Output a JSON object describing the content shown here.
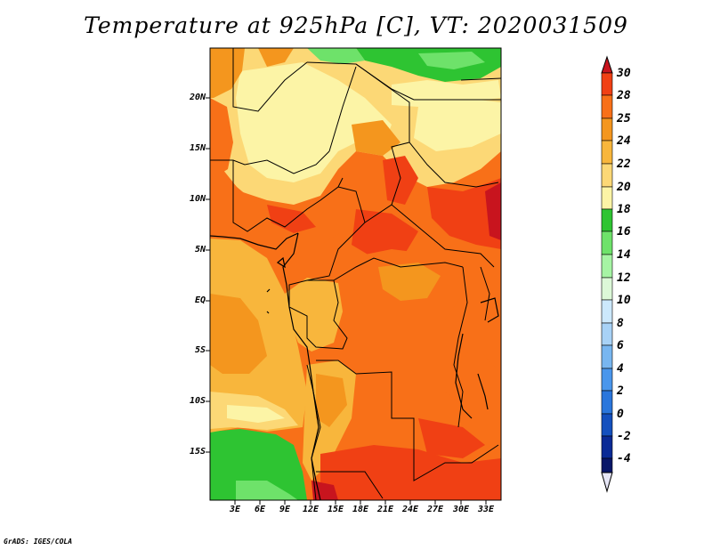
{
  "title": "Temperature at 925hPa [C], VT: 2020031509",
  "credit": "GrADS: IGES/COLA",
  "lat_labels": [
    "20N",
    "15N",
    "10N",
    "5N",
    "EQ",
    "5S",
    "10S",
    "15S"
  ],
  "lon_labels": [
    "3E",
    "6E",
    "9E",
    "12E",
    "15E",
    "18E",
    "21E",
    "24E",
    "27E",
    "30E",
    "33E"
  ],
  "colorbar": {
    "levels": [
      "30",
      "28",
      "25",
      "24",
      "22",
      "20",
      "18",
      "16",
      "14",
      "12",
      "10",
      "8",
      "6",
      "4",
      "2",
      "0",
      "-2",
      "-4"
    ],
    "colors": [
      "#c8141e",
      "#f04014",
      "#f87018",
      "#f4961e",
      "#f8b63c",
      "#fcd876",
      "#fcf4a6",
      "#2ec432",
      "#6ee26a",
      "#a6f4a4",
      "#dcf8d8",
      "#cce8fc",
      "#a8d2f6",
      "#78b6f0",
      "#4a96ec",
      "#2a76dc",
      "#1450be",
      "#0a2a96",
      "#081668",
      "#e6e6f6"
    ]
  }
}
